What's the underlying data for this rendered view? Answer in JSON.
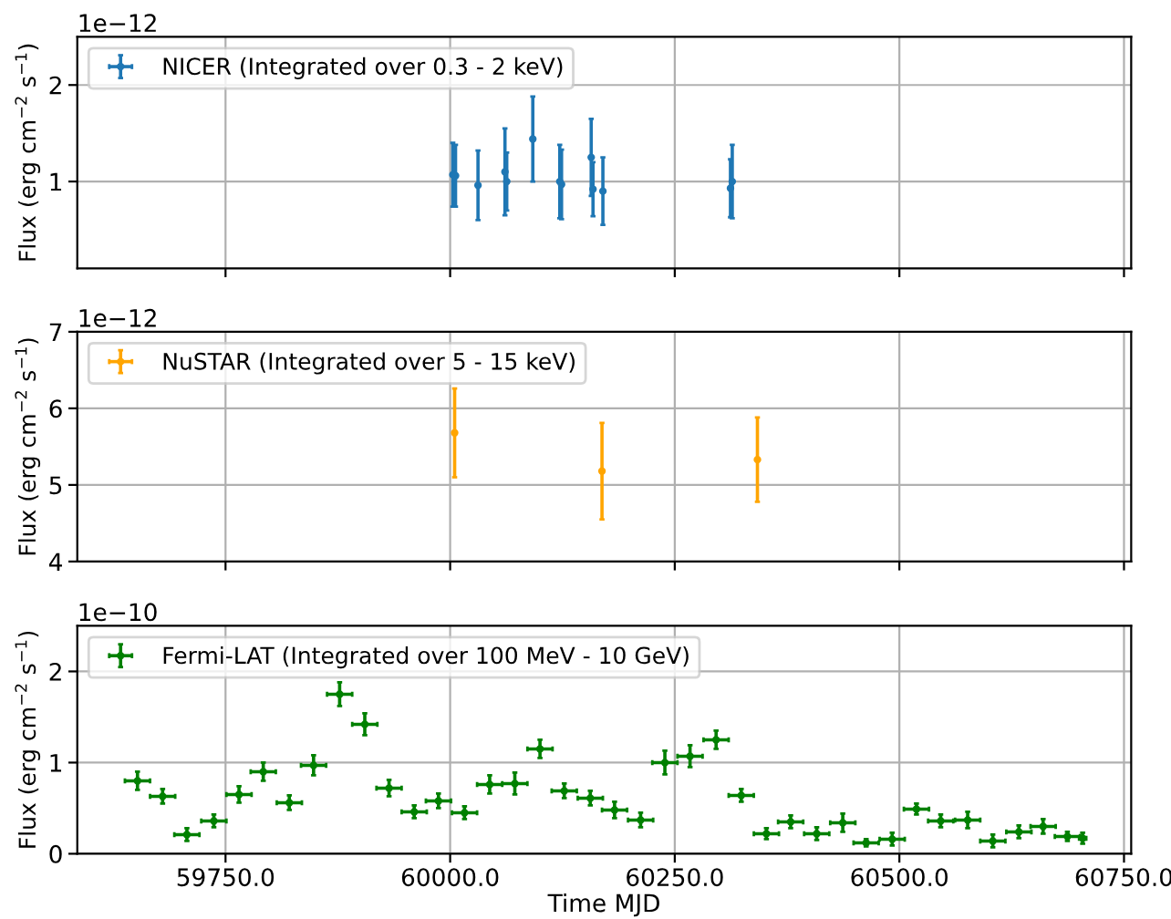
{
  "chart_data": [
    {
      "type": "scatter",
      "ylabel": "Flux (erg cm$^{−2}$ s$^{−1}$)",
      "annotations": [
        "1e−12"
      ],
      "marker": "circle",
      "grid": true,
      "legend": "top left",
      "tick_labels": "y",
      "xlim": [
        59585,
        60758
      ],
      "xticks": [
        {
          "value": 59750,
          "label": null
        },
        {
          "value": 60000,
          "label": null
        },
        {
          "value": 60250,
          "label": null
        },
        {
          "value": 60500,
          "label": null
        },
        {
          "value": 60750,
          "label": null
        }
      ],
      "ylim": [
        0.1,
        2.5
      ],
      "yticks": [
        1,
        2
      ],
      "series": [
        {
          "name": "NICER (Integrated over 0.3 - 2 keV)",
          "color": "#1f77b4",
          "x": [
            60003,
            60006,
            60031,
            60061,
            60063,
            60092,
            60122,
            60124,
            60157,
            60159,
            60170,
            60312,
            60314
          ],
          "values": [
            1.07,
            1.06,
            0.96,
            1.1,
            1.0,
            1.44,
            1.0,
            0.97,
            1.25,
            0.92,
            0.9,
            0.93,
            1.0
          ],
          "errors": [
            0.33,
            0.32,
            0.36,
            0.45,
            0.3,
            0.44,
            0.38,
            0.36,
            0.4,
            0.28,
            0.35,
            0.3,
            0.38
          ],
          "xerrors": [
            1,
            1,
            1,
            1,
            1,
            1,
            1,
            1,
            1,
            1,
            1,
            1,
            1
          ]
        }
      ]
    },
    {
      "type": "scatter",
      "ylabel": "Flux (erg cm$^{−2}$ s$^{−1}$)",
      "annotations": [
        "1e−12"
      ],
      "marker": "circle",
      "grid": true,
      "legend": "top left",
      "tick_labels": "y",
      "xlim": [
        59585,
        60758
      ],
      "xticks": [
        {
          "value": 59750,
          "label": null
        },
        {
          "value": 60000,
          "label": null
        },
        {
          "value": 60250,
          "label": null
        },
        {
          "value": 60500,
          "label": null
        },
        {
          "value": 60750,
          "label": null
        }
      ],
      "ylim": [
        4,
        7
      ],
      "yticks": [
        4,
        5,
        6,
        7
      ],
      "series": [
        {
          "name": "NuSTAR (Integrated over 5 - 15 keV)",
          "color": "#ffa500",
          "x": [
            60005,
            60169,
            60342
          ],
          "values": [
            5.68,
            5.18,
            5.33
          ],
          "errors": [
            0.58,
            0.63,
            0.55
          ],
          "xerrors": [
            1,
            1,
            1
          ]
        }
      ]
    },
    {
      "type": "scatter",
      "xlabel": "Time MJD",
      "ylabel": "Flux (erg cm$^{−2}$ s$^{−1}$)",
      "annotations": [
        "1e−10"
      ],
      "marker": "circle",
      "grid": true,
      "legend": "top left",
      "xlim": [
        59585,
        60758
      ],
      "xticks": [
        {
          "value": 59750,
          "label": "59750.0"
        },
        {
          "value": 60000,
          "label": "60000.0"
        },
        {
          "value": 60250,
          "label": "60250.0"
        },
        {
          "value": 60500,
          "label": "60500.0"
        },
        {
          "value": 60750,
          "label": "60750.0"
        }
      ],
      "ylim": [
        0,
        2.5
      ],
      "yticks": [
        0,
        1,
        2
      ],
      "series": [
        {
          "name": "Fermi-LAT (Integrated over 100 MeV - 10 GeV)",
          "color": "#008000",
          "x": [
            59652,
            59680,
            59707,
            59737,
            59765,
            59792,
            59821,
            59848,
            59877,
            59905,
            59932,
            59960,
            59987,
            60016,
            60044,
            60072,
            60100,
            60127,
            60156,
            60183,
            60212,
            60239,
            60267,
            60296,
            60324,
            60352,
            60379,
            60408,
            60437,
            60463,
            60492,
            60519,
            60546,
            60576,
            60604,
            60633,
            60660,
            60687,
            60704
          ],
          "values": [
            0.8,
            0.63,
            0.21,
            0.36,
            0.65,
            0.9,
            0.56,
            0.97,
            1.75,
            1.42,
            0.72,
            0.46,
            0.58,
            0.45,
            0.76,
            0.77,
            1.15,
            0.69,
            0.61,
            0.48,
            0.37,
            1.0,
            1.07,
            1.25,
            0.64,
            0.22,
            0.35,
            0.22,
            0.34,
            0.12,
            0.16,
            0.49,
            0.36,
            0.37,
            0.14,
            0.24,
            0.3,
            0.19,
            0.17
          ],
          "errors": [
            0.1,
            0.08,
            0.07,
            0.07,
            0.09,
            0.1,
            0.08,
            0.11,
            0.13,
            0.12,
            0.09,
            0.07,
            0.08,
            0.07,
            0.1,
            0.12,
            0.1,
            0.08,
            0.08,
            0.09,
            0.08,
            0.13,
            0.12,
            0.1,
            0.07,
            0.06,
            0.07,
            0.07,
            0.1,
            0.04,
            0.07,
            0.06,
            0.07,
            0.09,
            0.07,
            0.07,
            0.08,
            0.05,
            0.06
          ],
          "xerrors": [
            14,
            14,
            14,
            14,
            14,
            14,
            14,
            14,
            14,
            14,
            14,
            14,
            14,
            14,
            14,
            14,
            14,
            14,
            14,
            14,
            14,
            14,
            14,
            14,
            14,
            14,
            14,
            14,
            14,
            14,
            14,
            14,
            14,
            14,
            14,
            14,
            14,
            14,
            4
          ]
        }
      ]
    }
  ]
}
